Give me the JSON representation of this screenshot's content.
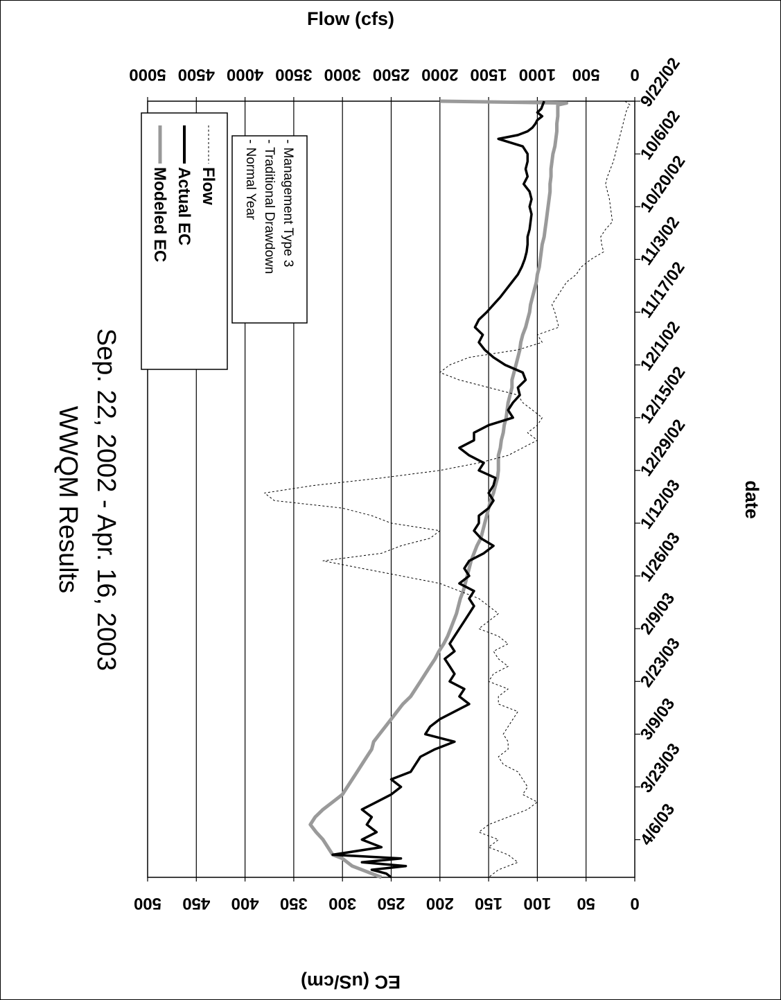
{
  "chart_data": {
    "type": "line",
    "title": "WWQM Results",
    "subtitle": "Sep. 22, 2002 - Apr. 16, 2003",
    "xlabel": "date",
    "ylabel_left": "EC (uS/cm)",
    "ylabel_right": "Flow (cfs)",
    "x_ticks": [
      "9/22/02",
      "10/6/02",
      "10/20/02",
      "11/3/02",
      "11/17/02",
      "12/1/02",
      "12/15/02",
      "12/29/02",
      "1/12/03",
      "1/26/03",
      "2/9/03",
      "2/23/03",
      "3/9/03",
      "3/23/03",
      "4/6/03"
    ],
    "x_range_days": [
      0,
      206
    ],
    "y_left_ticks": [
      "0",
      "500",
      "1000",
      "1500",
      "2000",
      "2500",
      "3000",
      "3500",
      "4000",
      "4500",
      "5000"
    ],
    "y_left_range": [
      0,
      5000
    ],
    "y_right_ticks": [
      "0",
      "50",
      "100",
      "150",
      "200",
      "250",
      "300",
      "350",
      "400",
      "450",
      "500"
    ],
    "y_right_range": [
      0,
      500
    ],
    "grid": "horizontal",
    "legend": {
      "entries": [
        "Modeled EC",
        "Actual EC",
        "Flow"
      ],
      "notes": [
        "- Normal Year",
        "- Traditional Drawdown",
        "- Management Type 3"
      ]
    },
    "series": [
      {
        "name": "Modeled EC",
        "axis": "left",
        "style": "gray-thick",
        "x": [
          0,
          0.5,
          1,
          2,
          4,
          6,
          8,
          10,
          12,
          14,
          16,
          18,
          20,
          22,
          24,
          26,
          28,
          30,
          32,
          34,
          36,
          38,
          40,
          42,
          44,
          46,
          48,
          50,
          52,
          54,
          56,
          58,
          60,
          62,
          64,
          66,
          68,
          70,
          72,
          74,
          76,
          78,
          80,
          82,
          84,
          86,
          88,
          90,
          92,
          94,
          96,
          98,
          100,
          102,
          104,
          106,
          108,
          110,
          112,
          114,
          116,
          118,
          120,
          122,
          124,
          126,
          128,
          130,
          132,
          134,
          136,
          138,
          140,
          142,
          144,
          146,
          148,
          150,
          152,
          154,
          156,
          158,
          160,
          162,
          164,
          166,
          168,
          170,
          172,
          174,
          176,
          178,
          180,
          182,
          184,
          186,
          188,
          190,
          192,
          194,
          196,
          198,
          200,
          201,
          202,
          203,
          204,
          205,
          206
        ],
        "y": [
          2000,
          700,
          790,
          790,
          790,
          800,
          800,
          810,
          820,
          840,
          850,
          860,
          860,
          870,
          870,
          880,
          890,
          900,
          910,
          920,
          930,
          950,
          960,
          970,
          980,
          1000,
          1010,
          1030,
          1050,
          1070,
          1080,
          1100,
          1120,
          1150,
          1170,
          1180,
          1200,
          1220,
          1240,
          1260,
          1260,
          1280,
          1300,
          1310,
          1320,
          1340,
          1350,
          1370,
          1380,
          1400,
          1400,
          1400,
          1410,
          1430,
          1450,
          1480,
          1500,
          1520,
          1540,
          1560,
          1580,
          1620,
          1650,
          1680,
          1700,
          1720,
          1740,
          1760,
          1790,
          1810,
          1830,
          1860,
          1890,
          1920,
          1960,
          2010,
          2050,
          2100,
          2150,
          2200,
          2250,
          2300,
          2380,
          2440,
          2500,
          2560,
          2620,
          2680,
          2700,
          2750,
          2800,
          2850,
          2900,
          2950,
          3000,
          3100,
          3200,
          3280,
          3330,
          3270,
          3200,
          3150,
          3100,
          3000,
          2950,
          2900,
          2800,
          2700,
          2600
        ]
      },
      {
        "name": "Actual EC",
        "axis": "left",
        "style": "black-thick",
        "x": [
          0,
          2,
          3,
          4,
          5,
          6,
          7,
          8,
          9,
          10,
          12,
          14,
          16,
          18,
          20,
          22,
          24,
          26,
          28,
          30,
          32,
          34,
          36,
          38,
          40,
          42,
          44,
          46,
          48,
          50,
          52,
          54,
          56,
          58,
          60,
          62,
          64,
          66,
          68,
          70,
          72,
          74,
          76,
          78,
          80,
          82,
          84,
          86,
          88,
          90,
          92,
          94,
          96,
          98,
          100,
          102,
          104,
          106,
          108,
          110,
          112,
          114,
          116,
          118,
          120,
          122,
          124,
          126,
          128,
          130,
          132,
          134,
          136,
          138,
          140,
          142,
          144,
          146,
          148,
          150,
          152,
          154,
          156,
          158,
          160,
          162,
          164,
          166,
          168,
          170,
          172,
          174,
          176,
          178,
          180,
          182,
          184,
          186,
          188,
          190,
          192,
          194,
          196,
          198,
          200,
          201,
          202,
          203,
          204,
          205,
          206
        ],
        "y": [
          930,
          960,
          1000,
          950,
          1000,
          1020,
          1050,
          1100,
          1200,
          1400,
          1150,
          1100,
          1100,
          1120,
          1100,
          1140,
          1080,
          1060,
          1080,
          1060,
          1070,
          1080,
          1100,
          1100,
          1110,
          1130,
          1160,
          1200,
          1260,
          1320,
          1380,
          1450,
          1520,
          1600,
          1640,
          1560,
          1600,
          1540,
          1450,
          1330,
          1150,
          1120,
          1200,
          1180,
          1250,
          1300,
          1250,
          1500,
          1650,
          1650,
          1800,
          1700,
          1550,
          1600,
          1430,
          1450,
          1500,
          1450,
          1500,
          1600,
          1600,
          1650,
          1580,
          1450,
          1550,
          1700,
          1750,
          1700,
          1800,
          1650,
          1700,
          1650,
          1700,
          1750,
          1800,
          1850,
          1900,
          1850,
          1950,
          1900,
          1850,
          1900,
          1750,
          1800,
          1700,
          1850,
          2000,
          2100,
          2150,
          1850,
          2050,
          2200,
          2250,
          2300,
          2500,
          2400,
          2500,
          2650,
          2800,
          2700,
          2750,
          2650,
          2800,
          2600,
          3100,
          2400,
          2800,
          2350,
          2700,
          2550,
          2500
        ]
      },
      {
        "name": "Flow",
        "axis": "right",
        "style": "dashed-thin",
        "x": [
          0,
          1,
          2,
          4,
          6,
          8,
          10,
          12,
          14,
          16,
          18,
          20,
          22,
          24,
          26,
          28,
          30,
          32,
          34,
          36,
          38,
          40,
          42,
          44,
          46,
          48,
          50,
          52,
          54,
          56,
          58,
          60,
          62,
          64,
          66,
          68,
          70,
          72,
          74,
          76,
          78,
          80,
          82,
          84,
          86,
          88,
          90,
          92,
          94,
          96,
          98,
          100,
          102,
          104,
          106,
          108,
          110,
          112,
          114,
          116,
          118,
          120,
          122,
          124,
          126,
          128,
          130,
          132,
          134,
          136,
          138,
          140,
          142,
          144,
          146,
          148,
          150,
          152,
          154,
          156,
          158,
          160,
          162,
          164,
          166,
          168,
          170,
          172,
          174,
          176,
          178,
          180,
          182,
          184,
          186,
          188,
          190,
          192,
          194,
          196,
          198,
          200,
          202,
          204,
          206
        ],
        "y": [
          10,
          5,
          8,
          10,
          12,
          14,
          16,
          18,
          20,
          22,
          25,
          28,
          30,
          28,
          26,
          25,
          24,
          23,
          30,
          35,
          34,
          32,
          45,
          55,
          60,
          70,
          75,
          80,
          85,
          82,
          80,
          78,
          100,
          95,
          120,
          170,
          190,
          200,
          180,
          150,
          120,
          115,
          105,
          95,
          100,
          110,
          100,
          115,
          130,
          160,
          200,
          260,
          330,
          380,
          370,
          300,
          270,
          250,
          200,
          210,
          240,
          260,
          320,
          280,
          240,
          200,
          180,
          160,
          150,
          140,
          150,
          160,
          140,
          130,
          145,
          140,
          130,
          145,
          150,
          130,
          140,
          140,
          120,
          125,
          130,
          135,
          130,
          130,
          140,
          135,
          120,
          115,
          110,
          115,
          100,
          110,
          130,
          150,
          160,
          140,
          150,
          130,
          120,
          140,
          150
        ]
      }
    ]
  }
}
